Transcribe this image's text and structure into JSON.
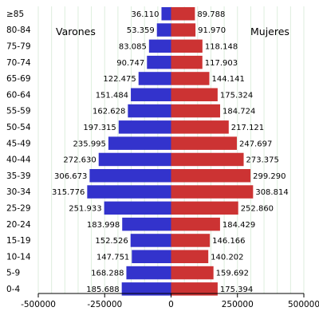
{
  "chart_data": {
    "type": "bar",
    "orientation": "horizontal",
    "categories": [
      "≥85",
      "80-84",
      "75-79",
      "70-74",
      "65-69",
      "60-64",
      "55-59",
      "50-54",
      "45-49",
      "40-44",
      "35-39",
      "30-34",
      "25-29",
      "20-24",
      "15-19",
      "10-14",
      "5-9",
      "0-4"
    ],
    "series": [
      {
        "name": "Varones",
        "color": "#3333cc",
        "values": [
          36110,
          53359,
          83085,
          90747,
          122475,
          151484,
          162628,
          197315,
          235995,
          272630,
          306673,
          315776,
          251933,
          183998,
          152526,
          147751,
          168288,
          185688
        ],
        "labels": [
          "36.110",
          "53.359",
          "83.085",
          "90.747",
          "122.475",
          "151.484",
          "162.628",
          "197.315",
          "235.995",
          "272.630",
          "306.673",
          "315.776",
          "251.933",
          "183.998",
          "152.526",
          "147.751",
          "168.288",
          "185.688"
        ]
      },
      {
        "name": "Mujeres",
        "color": "#cc3333",
        "values": [
          89788,
          91970,
          118148,
          117903,
          144141,
          175324,
          184724,
          217121,
          247697,
          273375,
          299290,
          308814,
          252860,
          184429,
          146166,
          140202,
          159692,
          175394
        ],
        "labels": [
          "89.788",
          "91.970",
          "118.148",
          "117.903",
          "144.141",
          "175.324",
          "184.724",
          "217.121",
          "247.697",
          "273.375",
          "299.290",
          "308.814",
          "252.860",
          "184.429",
          "146.166",
          "140.202",
          "159.692",
          "175.394"
        ]
      }
    ],
    "xlim": [
      -500000,
      500000
    ],
    "xticks": [
      -500000,
      -250000,
      0,
      250000,
      500000
    ],
    "xtick_labels": [
      "-500000",
      "-250000",
      "0",
      "250000",
      "500000"
    ],
    "grid": "vertical",
    "grid_color": "#ddeedd"
  }
}
